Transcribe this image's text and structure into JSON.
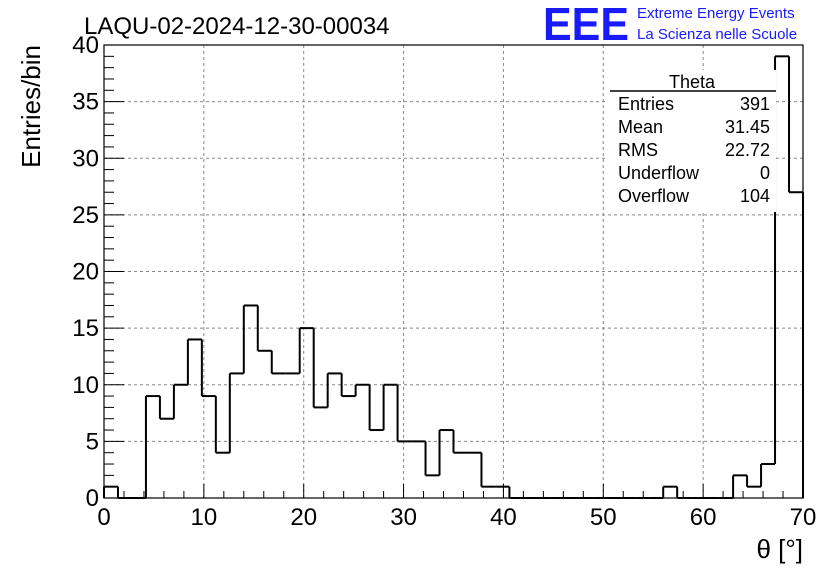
{
  "run_title": "LAQU-02-2024-12-30-00034",
  "logo": {
    "mark": "EEE",
    "line1": "Extreme Energy Events",
    "line2": "La Scienza nelle Scuole",
    "color": "#1a1aff"
  },
  "stats_box": {
    "title": "Theta",
    "rows": [
      {
        "label": "Entries",
        "value": "391"
      },
      {
        "label": "Mean",
        "value": "31.45"
      },
      {
        "label": "RMS",
        "value": "22.72"
      },
      {
        "label": "Underflow",
        "value": "0"
      },
      {
        "label": "Overflow",
        "value": "104"
      }
    ]
  },
  "chart_data": {
    "type": "bar",
    "style": "step-histogram",
    "title": "LAQU-02-2024-12-30-00034",
    "xlabel": "θ [°]",
    "ylabel": "Entries/bin",
    "xlim": [
      0,
      70
    ],
    "ylim": [
      0,
      40
    ],
    "xticks": [
      0,
      10,
      20,
      30,
      40,
      50,
      60,
      70
    ],
    "yticks": [
      0,
      5,
      10,
      15,
      20,
      25,
      30,
      35,
      40
    ],
    "grid": true,
    "bin_edges": [
      0,
      1.4,
      2.8,
      4.2,
      5.6,
      7,
      8.4,
      9.8,
      11.2,
      12.6,
      14,
      15.4,
      16.8,
      18.2,
      19.6,
      21,
      22.4,
      23.8,
      25.2,
      26.6,
      28,
      29.4,
      30.8,
      32.2,
      33.6,
      35,
      36.4,
      37.8,
      39.2,
      40.6,
      42,
      43.4,
      44.8,
      46.2,
      47.6,
      49,
      50.4,
      51.8,
      53.2,
      54.6,
      56,
      57.4,
      58.8,
      60.2,
      61.6,
      63,
      64.4,
      65.8,
      67.2,
      68.6,
      70
    ],
    "values": [
      1,
      0,
      0,
      9,
      7,
      10,
      14,
      9,
      4,
      11,
      17,
      13,
      11,
      11,
      15,
      8,
      11,
      9,
      10,
      6,
      10,
      5,
      5,
      2,
      6,
      4,
      4,
      1,
      1,
      0,
      0,
      0,
      0,
      0,
      0,
      0,
      0,
      0,
      0,
      0,
      1,
      0,
      0,
      0,
      0,
      2,
      1,
      3,
      39,
      27
    ],
    "line_color": "#000000",
    "grid_color": "#888888"
  }
}
